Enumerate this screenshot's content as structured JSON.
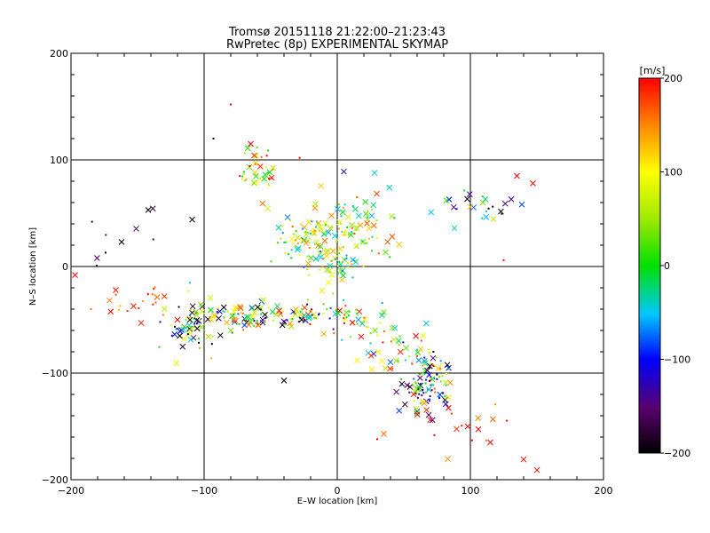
{
  "chart_data": {
    "type": "scatter",
    "title": "Tromsø 20151118 21:22:00–21:23:43",
    "subtitle": "RwPretec (8p) EXPERIMENTAL SKYMAP",
    "xlabel": "E–W location [km]",
    "ylabel": "N–S location [km]",
    "xlim": [
      -200,
      200
    ],
    "ylim": [
      -200,
      200
    ],
    "xticks": [
      "−200",
      "−100",
      "0",
      "100",
      "200"
    ],
    "yticks": [
      "−200",
      "−100",
      "0",
      "100",
      "200"
    ],
    "grid": true,
    "colorbar": {
      "label": "[m/s]",
      "range": [
        -200,
        200
      ],
      "ticks": [
        "−200",
        "−100",
        "0",
        "100",
        "200"
      ]
    },
    "markers": {
      "cross": "large meteor detection",
      "dot": "small meteor detection"
    },
    "clusters": [
      {
        "cx": -60,
        "cy": 90,
        "sx": 8,
        "sy": 14,
        "n": 40,
        "vmean": 110,
        "vspread": 120
      },
      {
        "cx": -25,
        "cy": 28,
        "sx": 10,
        "sy": 12,
        "n": 70,
        "vmean": 40,
        "vspread": 130
      },
      {
        "cx": 15,
        "cy": 35,
        "sx": 14,
        "sy": 18,
        "n": 80,
        "vmean": 60,
        "vspread": 120
      },
      {
        "cx": 0,
        "cy": 5,
        "sx": 10,
        "sy": 10,
        "n": 45,
        "vmean": 30,
        "vspread": 110
      },
      {
        "cx": -150,
        "cy": -33,
        "sx": 14,
        "sy": 8,
        "n": 22,
        "vmean": 170,
        "vspread": 40
      },
      {
        "cx": -108,
        "cy": -55,
        "sx": 10,
        "sy": 14,
        "n": 60,
        "vmean": -60,
        "vspread": 200
      },
      {
        "cx": -65,
        "cy": -47,
        "sx": 18,
        "sy": 7,
        "n": 85,
        "vmean": -30,
        "vspread": 200
      },
      {
        "cx": -25,
        "cy": -45,
        "sx": 12,
        "sy": 7,
        "n": 50,
        "vmean": 0,
        "vspread": 200
      },
      {
        "cx": 15,
        "cy": -55,
        "sx": 12,
        "sy": 10,
        "n": 40,
        "vmean": 80,
        "vspread": 150
      },
      {
        "cx": 45,
        "cy": -80,
        "sx": 12,
        "sy": 12,
        "n": 35,
        "vmean": 60,
        "vspread": 160
      },
      {
        "cx": 67,
        "cy": -110,
        "sx": 9,
        "sy": 14,
        "n": 110,
        "vmean": -20,
        "vspread": 220
      },
      {
        "cx": 110,
        "cy": 60,
        "sx": 16,
        "sy": 10,
        "n": 22,
        "vmean": -80,
        "vspread": 180
      },
      {
        "cx": 90,
        "cy": -150,
        "sx": 18,
        "sy": 12,
        "n": 14,
        "vmean": 180,
        "vspread": 40
      },
      {
        "cx": -150,
        "cy": 30,
        "sx": 18,
        "sy": 14,
        "n": 8,
        "vmean": -180,
        "vspread": 30
      }
    ],
    "extra_points": [
      {
        "x": -197,
        "y": -8,
        "v": 200,
        "m": "cross"
      },
      {
        "x": -142,
        "y": 53,
        "v": -200,
        "m": "cross"
      },
      {
        "x": -162,
        "y": 23,
        "v": -200,
        "m": "cross"
      },
      {
        "x": -174,
        "y": 13,
        "v": -200,
        "m": "dot"
      },
      {
        "x": 115,
        "y": -165,
        "v": 200,
        "m": "cross"
      },
      {
        "x": 140,
        "y": -181,
        "v": 200,
        "m": "cross"
      },
      {
        "x": 150,
        "y": -191,
        "v": 200,
        "m": "cross"
      },
      {
        "x": 135,
        "y": 85,
        "v": 200,
        "m": "cross"
      },
      {
        "x": 147,
        "y": 78,
        "v": 200,
        "m": "cross"
      },
      {
        "x": 35,
        "y": -157,
        "v": 160,
        "m": "cross"
      },
      {
        "x": -80,
        "y": 152,
        "v": 200,
        "m": "dot"
      },
      {
        "x": -93,
        "y": 120,
        "v": -200,
        "m": "dot"
      },
      {
        "x": -65,
        "y": 115,
        "v": 200,
        "m": "cross"
      },
      {
        "x": 5,
        "y": 89,
        "v": -120,
        "m": "cross"
      },
      {
        "x": 100,
        "y": 56,
        "v": 130,
        "m": "cross"
      },
      {
        "x": 82,
        "y": 62,
        "v": 20,
        "m": "cross"
      },
      {
        "x": 88,
        "y": 36,
        "v": -40,
        "m": "cross"
      },
      {
        "x": 125,
        "y": 6,
        "v": 200,
        "m": "dot"
      },
      {
        "x": 98,
        "y": -150,
        "v": 200,
        "m": "cross"
      },
      {
        "x": -40,
        "y": -107,
        "v": -200,
        "m": "cross"
      },
      {
        "x": -80,
        "y": -60,
        "v": 40,
        "m": "cross"
      },
      {
        "x": 15,
        "y": -88,
        "v": 100,
        "m": "cross"
      },
      {
        "x": 30,
        "y": -162,
        "v": 200,
        "m": "dot"
      },
      {
        "x": -120,
        "y": -50,
        "v": 200,
        "m": "cross"
      }
    ]
  }
}
